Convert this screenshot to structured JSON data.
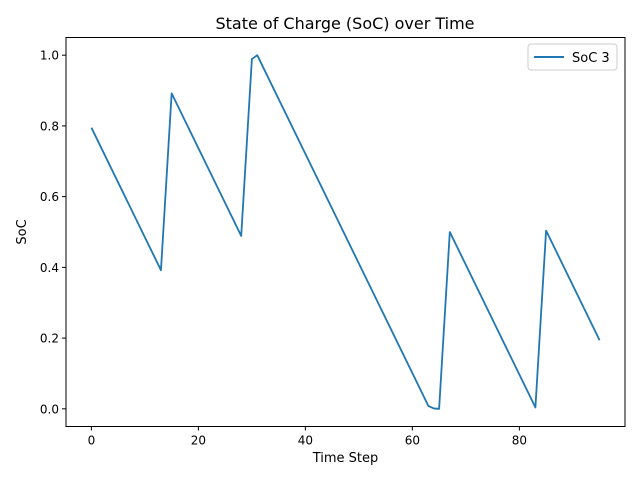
{
  "chart_data": {
    "type": "line",
    "title": "State of Charge (SoC) over Time",
    "xlabel": "Time Step",
    "ylabel": "SoC",
    "xlim": [
      -4.75,
      99.75
    ],
    "ylim": [
      -0.05,
      1.05
    ],
    "xticks": [
      0,
      20,
      40,
      60,
      80
    ],
    "xtick_labels": [
      "0",
      "20",
      "40",
      "60",
      "80"
    ],
    "yticks": [
      0.0,
      0.2,
      0.4,
      0.6,
      0.8,
      1.0
    ],
    "ytick_labels": [
      "0.0",
      "0.2",
      "0.4",
      "0.6",
      "0.8",
      "1.0"
    ],
    "grid": false,
    "legend_position": "upper right",
    "series": [
      {
        "name": "SoC 3",
        "color": "#1f77b4",
        "x": [
          0,
          13,
          15,
          28,
          30,
          31,
          63,
          64,
          65,
          67,
          83,
          85,
          95
        ],
        "y": [
          0.795,
          0.392,
          0.892,
          0.489,
          0.989,
          1.0,
          0.008,
          0.001,
          0.0,
          0.5,
          0.004,
          0.504,
          0.194
        ]
      }
    ]
  }
}
